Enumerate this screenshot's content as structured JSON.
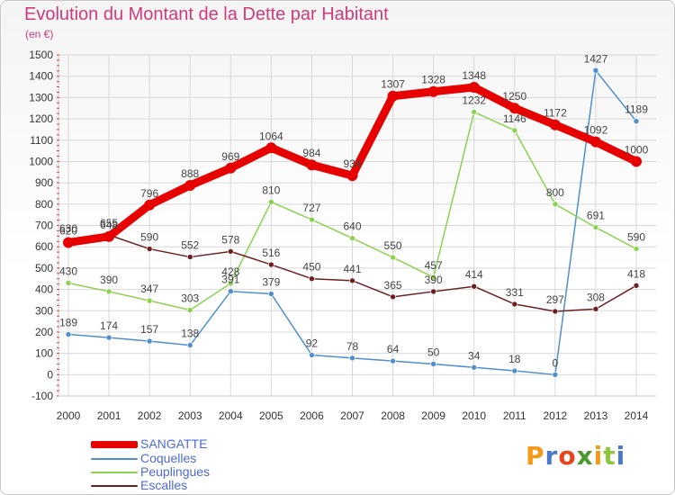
{
  "title": "Evolution du Montant de la Dette par Habitant",
  "unit": "(en €)",
  "logo_text": "Proxiti",
  "chart_data": {
    "type": "line",
    "x": [
      2000,
      2001,
      2002,
      2003,
      2004,
      2005,
      2006,
      2007,
      2008,
      2009,
      2010,
      2011,
      2012,
      2013,
      2014
    ],
    "ylim": [
      -100,
      1500
    ],
    "yticks": [
      -100,
      0,
      100,
      200,
      300,
      400,
      500,
      600,
      700,
      800,
      900,
      1000,
      1100,
      1200,
      1300,
      1400,
      1500
    ],
    "grid": true,
    "legend_position": "bottom-left",
    "series": [
      {
        "name": "SANGATTE",
        "color": "#e60000",
        "values": [
          620,
          648,
          796,
          888,
          969,
          1064,
          984,
          934,
          1307,
          1328,
          1348,
          1250,
          1172,
          1092,
          1000
        ]
      },
      {
        "name": "Coquelles",
        "color": "#4f8fcc",
        "values": [
          189,
          174,
          157,
          138,
          391,
          379,
          92,
          78,
          64,
          50,
          34,
          18,
          0,
          1427,
          1189
        ]
      },
      {
        "name": "Peuplingues",
        "color": "#8cd250",
        "values": [
          430,
          390,
          347,
          303,
          428,
          810,
          727,
          640,
          550,
          457,
          1232,
          1146,
          800,
          691,
          590
        ]
      },
      {
        "name": "Escalles",
        "color": "#6b1f1f",
        "values": [
          630,
          655,
          590,
          552,
          578,
          516,
          450,
          441,
          365,
          390,
          414,
          331,
          297,
          308,
          418
        ]
      }
    ]
  }
}
